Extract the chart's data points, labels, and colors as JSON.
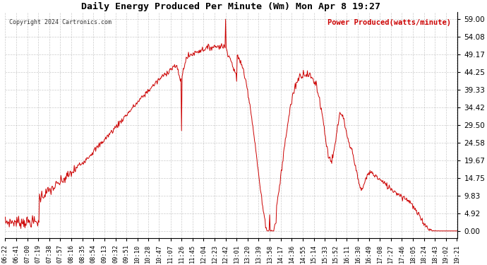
{
  "title": "Daily Energy Produced Per Minute (Wm) Mon Apr 8 19:27",
  "copyright": "Copyright 2024 Cartronics.com",
  "legend_label": "Power Produced(watts/minute)",
  "line_color": "#cc0000",
  "legend_color": "#cc0000",
  "copyright_color": "#333333",
  "background_color": "#ffffff",
  "grid_color": "#aaaaaa",
  "yticks": [
    0.0,
    4.92,
    9.83,
    14.75,
    19.67,
    24.58,
    29.5,
    34.42,
    39.33,
    44.25,
    49.17,
    54.08,
    59.0
  ],
  "ymax": 61.0,
  "ymin": -2.0,
  "xtick_labels": [
    "06:22",
    "06:41",
    "07:00",
    "07:19",
    "07:38",
    "07:57",
    "08:16",
    "08:35",
    "08:54",
    "09:13",
    "09:32",
    "09:51",
    "10:10",
    "10:28",
    "10:47",
    "11:07",
    "11:26",
    "11:45",
    "12:04",
    "12:23",
    "12:42",
    "13:01",
    "13:20",
    "13:39",
    "13:58",
    "14:17",
    "14:36",
    "14:55",
    "15:14",
    "15:33",
    "15:52",
    "16:11",
    "16:30",
    "16:49",
    "17:08",
    "17:27",
    "17:46",
    "18:05",
    "18:24",
    "18:43",
    "19:02",
    "19:21"
  ]
}
